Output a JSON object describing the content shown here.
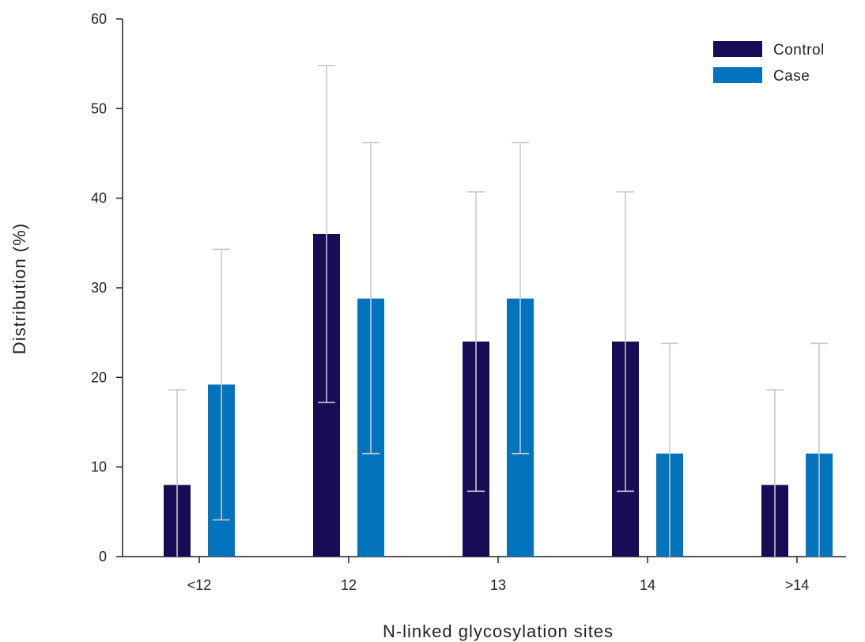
{
  "chart_data": {
    "type": "bar",
    "title": "",
    "xlabel": "N-linked glycosylation sites",
    "ylabel": "Distribution (%)",
    "categories": [
      "<12",
      "12",
      "13",
      "14",
      ">14"
    ],
    "ylim": [
      0,
      60
    ],
    "yticks": [
      0,
      10,
      20,
      30,
      40,
      50,
      60
    ],
    "error_bars": true,
    "legend_position": "top-right",
    "series": [
      {
        "name": "Control",
        "color": "#170c56",
        "values": [
          8,
          36,
          24,
          24,
          8
        ],
        "error_low": [
          0,
          17.2,
          7.3,
          7.3,
          0
        ],
        "error_high": [
          18.6,
          54.8,
          40.7,
          40.7,
          18.6
        ]
      },
      {
        "name": "Case",
        "color": "#0373be",
        "values": [
          19.2,
          28.8,
          28.8,
          11.5,
          11.5
        ],
        "error_low": [
          4.1,
          11.5,
          11.5,
          0,
          0
        ],
        "error_high": [
          34.3,
          46.2,
          46.2,
          23.8,
          23.8
        ]
      }
    ],
    "error_bar_color": "#c8c8c8",
    "axis_color": "#222222"
  }
}
